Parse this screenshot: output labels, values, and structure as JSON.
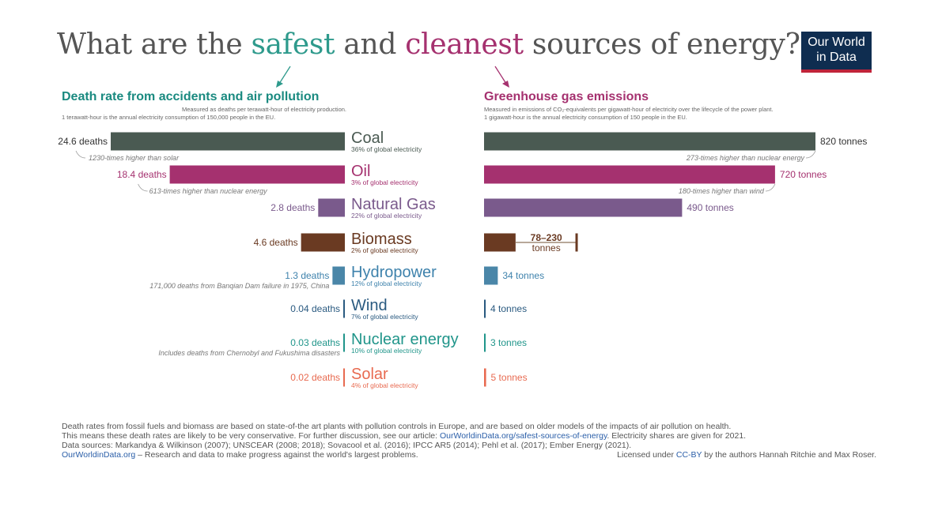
{
  "title": {
    "part1": "What are the ",
    "safest": "safest",
    "part2": " and ",
    "cleanest": "cleanest",
    "part3": " sources of energy?"
  },
  "logo": {
    "line1": "Our World",
    "line2": "in Data"
  },
  "colors": {
    "title_text": "#555555",
    "safest": "#2e9a8c",
    "cleanest": "#a5316f",
    "logo_bg": "#0f2d50",
    "logo_accent": "#c0243a"
  },
  "left_panel": {
    "title": "Death rate from accidents and air pollution",
    "subtitle1": "Measured as deaths per terawatt-hour of electricity production.",
    "subtitle2": "1 terawatt-hour is the annual electricity consumption of 150,000 people in the EU."
  },
  "right_panel": {
    "title": "Greenhouse gas emissions",
    "subtitle1": "Measured in emissions of CO₂-equivalents per gigawatt-hour of electricity over the lifecycle of the power plant.",
    "subtitle2": "1 gigawatt-hour is the annual electricity consumption of 150 people in the EU."
  },
  "chart_data": [
    {
      "type": "bar",
      "title": "Death rate from accidents and air pollution",
      "unit": "deaths",
      "categories": [
        "Coal",
        "Oil",
        "Natural Gas",
        "Biomass",
        "Hydropower",
        "Wind",
        "Nuclear energy",
        "Solar"
      ],
      "values": [
        24.6,
        18.4,
        2.8,
        4.6,
        1.3,
        0.04,
        0.03,
        0.02
      ],
      "labels": [
        "24.6 deaths",
        "18.4 deaths",
        "2.8 deaths",
        "4.6 deaths",
        "1.3 deaths",
        "0.04 deaths",
        "0.03 deaths",
        "0.02 deaths"
      ],
      "annotations": [
        "1230-times higher than solar",
        "613-times higher than nuclear energy",
        "",
        "",
        "171,000 deaths from Banqian Dam failure in 1975, China",
        "",
        "Includes deaths from Chernobyl and Fukushima disasters",
        ""
      ]
    },
    {
      "type": "bar",
      "title": "Greenhouse gas emissions",
      "unit": "tonnes",
      "categories": [
        "Coal",
        "Oil",
        "Natural Gas",
        "Biomass",
        "Hydropower",
        "Wind",
        "Nuclear energy",
        "Solar"
      ],
      "values": [
        820,
        720,
        490,
        78,
        34,
        4,
        3,
        5
      ],
      "range": [
        null,
        null,
        null,
        [
          78,
          230
        ],
        null,
        null,
        null,
        null
      ],
      "labels": [
        "820 tonnes",
        "720 tonnes",
        "490 tonnes",
        "78–230 tonnes",
        "34 tonnes",
        "4 tonnes",
        "3 tonnes",
        "5 tonnes"
      ],
      "annotations": [
        "273-times higher than nuclear energy",
        "180-times higher than wind",
        "",
        "",
        "",
        "",
        "",
        ""
      ]
    }
  ],
  "sources": [
    {
      "name": "Coal",
      "share": "36% of global electricity",
      "color": "#4a5a52"
    },
    {
      "name": "Oil",
      "share": "3% of global electricity",
      "color": "#a5316f"
    },
    {
      "name": "Natural Gas",
      "share": "22% of global electricity",
      "color": "#7a5a8c"
    },
    {
      "name": "Biomass",
      "share": "2% of global electricity",
      "color": "#6a3a22"
    },
    {
      "name": "Hydropower",
      "share": "12% of global electricity",
      "color": "#3e82ac"
    },
    {
      "name": "Wind",
      "share": "7% of global electricity",
      "color": "#2a5a80"
    },
    {
      "name": "Nuclear energy",
      "share": "10% of global electricity",
      "color": "#20958a"
    },
    {
      "name": "Solar",
      "share": "4% of global electricity",
      "color": "#e86a50"
    }
  ],
  "footer": {
    "line1": "Death rates from fossil fuels and biomass are based on state-of-the art plants with pollution controls in Europe, and are based on older models of the impacts of air pollution on health.",
    "line2_pre": "This means these death rates are likely to be very conservative. For further discussion, see our article: ",
    "line2_link": "OurWorldinData.org/safest-sources-of-energy",
    "line2_post": ". Electricity shares are given for 2021.",
    "line3": "Data sources: Markandya & Wilkinson (2007); UNSCEAR (2008; 2018); Sovacool et al. (2016); IPCC AR5 (2014); Pehl et al. (2017); Ember Energy (2021).",
    "line4_link": "OurWorldinData.org",
    "line4_post": " – Research and data to make progress against the world's largest problems.",
    "license_pre": "Licensed under ",
    "license_link": "CC-BY",
    "license_post": " by the authors Hannah Ritchie and Max Roser."
  }
}
